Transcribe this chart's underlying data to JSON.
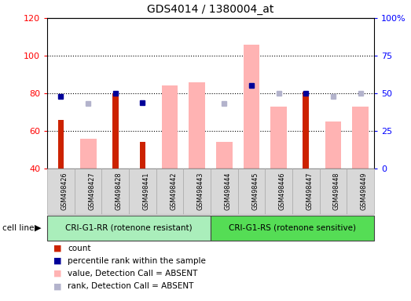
{
  "title": "GDS4014 / 1380004_at",
  "samples": [
    "GSM498426",
    "GSM498427",
    "GSM498428",
    "GSM498441",
    "GSM498442",
    "GSM498443",
    "GSM498444",
    "GSM498445",
    "GSM498446",
    "GSM498447",
    "GSM498448",
    "GSM498449"
  ],
  "group1_count": 6,
  "group1_label": "CRI-G1-RR (rotenone resistant)",
  "group2_label": "CRI-G1-RS (rotenone sensitive)",
  "ylim_left": [
    40,
    120
  ],
  "ylim_right": [
    0,
    100
  ],
  "yticks_left": [
    40,
    60,
    80,
    100,
    120
  ],
  "ytick_labels_right": [
    "0",
    "25",
    "50",
    "75",
    "100%"
  ],
  "count_values": [
    66,
    null,
    80,
    54,
    null,
    null,
    null,
    null,
    null,
    81,
    null,
    null
  ],
  "rank_values": [
    48,
    null,
    50,
    44,
    null,
    null,
    null,
    55,
    null,
    50,
    null,
    null
  ],
  "value_absent": [
    null,
    56,
    null,
    null,
    84,
    86,
    54,
    106,
    73,
    null,
    65,
    73
  ],
  "rank_absent": [
    null,
    43,
    null,
    null,
    null,
    null,
    43,
    55,
    50,
    null,
    48,
    50
  ],
  "color_count": "#cc2200",
  "color_rank": "#000099",
  "color_value_absent": "#ffb3b3",
  "color_rank_absent": "#b3b3cc",
  "group1_bg": "#aaeebb",
  "group2_bg": "#55dd55",
  "sample_bg": "#d8d8d8",
  "dotted_lines": [
    60,
    80,
    100
  ],
  "legend_items": [
    {
      "color": "#cc2200",
      "label": "count"
    },
    {
      "color": "#000099",
      "label": "percentile rank within the sample"
    },
    {
      "color": "#ffb3b3",
      "label": "value, Detection Call = ABSENT"
    },
    {
      "color": "#b3b3cc",
      "label": "rank, Detection Call = ABSENT"
    }
  ]
}
